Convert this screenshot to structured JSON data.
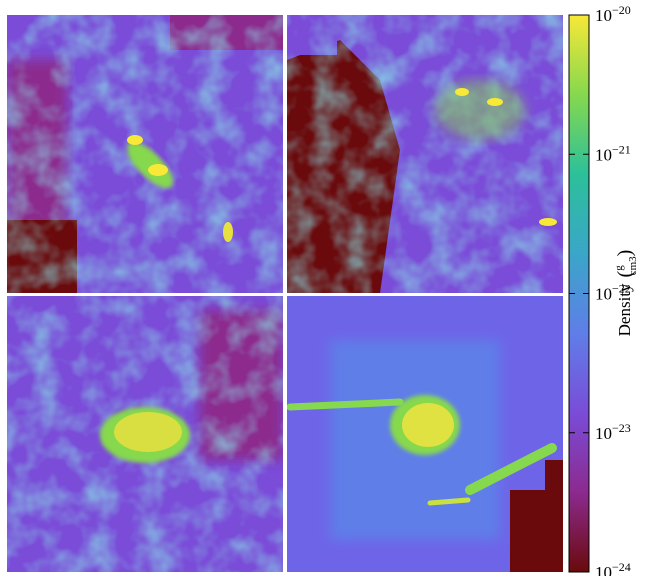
{
  "chart_data": {
    "type": "image-grid",
    "colorbar_label": "Density",
    "colorbar_units": {
      "numerator": "g",
      "denominator": "cm3"
    },
    "log_scale": true,
    "clim": [
      1e-24,
      1e-20
    ],
    "cticks": [
      {
        "value": 1e-24,
        "label": "10−24"
      },
      {
        "value": 1e-23,
        "label": "10−23"
      },
      {
        "value": 1e-22,
        "label": "10−22"
      },
      {
        "value": 1e-21,
        "label": "10−21"
      },
      {
        "value": 1e-20,
        "label": "10−20"
      }
    ],
    "colormap": [
      "#6a0a0c",
      "#8c2a8e",
      "#7a4cd8",
      "#5f7ee8",
      "#3aa6c8",
      "#2cc09a",
      "#86d84e",
      "#f8e838"
    ]
  }
}
